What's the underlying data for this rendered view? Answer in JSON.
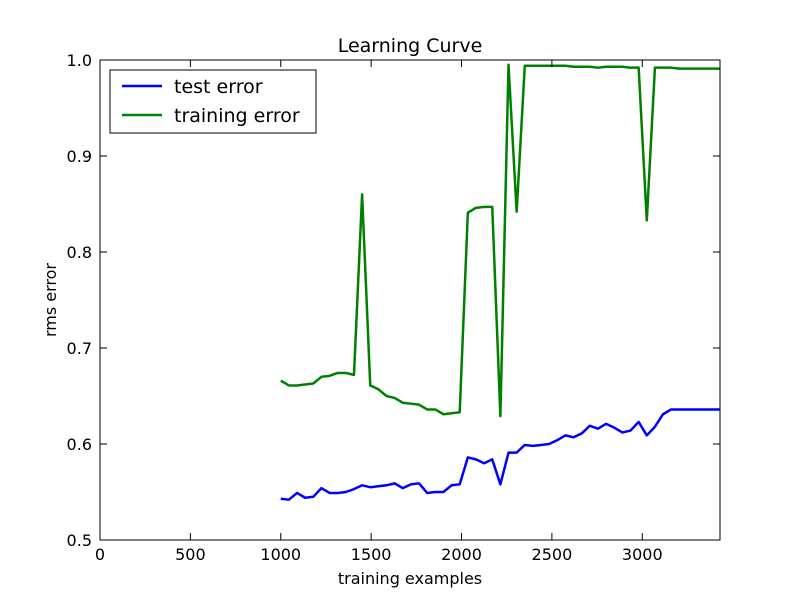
{
  "chart_data": {
    "type": "line",
    "title": "Learning Curve",
    "xlabel": "training examples",
    "ylabel": "rms error",
    "xlim": [
      0,
      3430
    ],
    "ylim": [
      0.5,
      1.0
    ],
    "x_ticks": [
      0,
      500,
      1000,
      1500,
      2000,
      2500,
      3000
    ],
    "y_ticks": [
      0.5,
      0.6,
      0.7,
      0.8,
      0.9,
      1.0
    ],
    "x_tick_labels": [
      "0",
      "500",
      "1000",
      "1500",
      "2000",
      "2500",
      "3000"
    ],
    "y_tick_labels": [
      "0.5",
      "0.6",
      "0.7",
      "0.8",
      "0.9",
      "1.0"
    ],
    "grid": false,
    "legend_position": "top-left",
    "x": [
      1000,
      1045,
      1090,
      1135,
      1180,
      1225,
      1270,
      1315,
      1360,
      1405,
      1450,
      1495,
      1540,
      1585,
      1630,
      1675,
      1720,
      1765,
      1810,
      1855,
      1900,
      1945,
      1990,
      2035,
      2080,
      2125,
      2170,
      2215,
      2260,
      2305,
      2350,
      2395,
      2440,
      2485,
      2530,
      2575,
      2620,
      2665,
      2710,
      2755,
      2800,
      2845,
      2890,
      2935,
      2980,
      3025,
      3070,
      3115,
      3160,
      3205,
      3250,
      3295,
      3340,
      3385,
      3430
    ],
    "series": [
      {
        "name": "test error",
        "color": "#0000ff",
        "values": [
          0.543,
          0.542,
          0.549,
          0.544,
          0.545,
          0.554,
          0.549,
          0.549,
          0.55,
          0.553,
          0.557,
          0.555,
          0.556,
          0.557,
          0.559,
          0.554,
          0.558,
          0.559,
          0.549,
          0.55,
          0.55,
          0.557,
          0.558,
          0.586,
          0.584,
          0.58,
          0.584,
          0.558,
          0.591,
          0.591,
          0.599,
          0.598,
          0.599,
          0.6,
          0.604,
          0.609,
          0.607,
          0.611,
          0.619,
          0.616,
          0.621,
          0.617,
          0.612,
          0.614,
          0.623,
          0.609,
          0.618,
          0.631,
          0.636,
          0.636,
          0.636,
          0.636,
          0.636,
          0.636,
          0.636
        ]
      },
      {
        "name": "training error",
        "color": "#008000",
        "values": [
          0.666,
          0.661,
          0.661,
          0.662,
          0.663,
          0.67,
          0.671,
          0.674,
          0.674,
          0.672,
          0.86,
          0.661,
          0.657,
          0.65,
          0.648,
          0.643,
          0.642,
          0.641,
          0.636,
          0.636,
          0.631,
          0.632,
          0.633,
          0.841,
          0.846,
          0.847,
          0.847,
          0.629,
          0.995,
          0.842,
          0.994,
          0.994,
          0.994,
          0.994,
          0.994,
          0.994,
          0.993,
          0.993,
          0.993,
          0.992,
          0.993,
          0.993,
          0.993,
          0.992,
          0.992,
          0.833,
          0.992,
          0.992,
          0.992,
          0.991,
          0.991,
          0.991,
          0.991,
          0.991,
          0.991
        ]
      }
    ]
  }
}
